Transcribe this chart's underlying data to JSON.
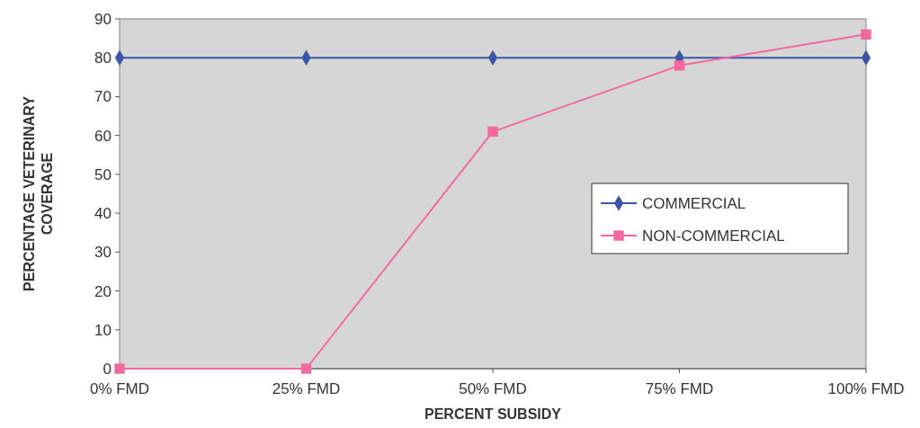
{
  "chart_data": {
    "type": "line",
    "xlabel": "PERCENT SUBSIDY",
    "ylabel": "PERCENTAGE VETERINARY COVERAGE",
    "categories": [
      "0% FMD",
      "25% FMD",
      "50% FMD",
      "75% FMD",
      "100% FMD"
    ],
    "series": [
      {
        "name": "COMMERCIAL",
        "color": "#3b56a6",
        "values": [
          80,
          80,
          80,
          80,
          80
        ],
        "marker": "diamond"
      },
      {
        "name": "NON-COMMERCIAL",
        "color": "#f2689f",
        "values": [
          0,
          0,
          61,
          78,
          86
        ],
        "marker": "square"
      }
    ],
    "ylim": [
      0,
      90
    ],
    "yticks": [
      0,
      10,
      20,
      30,
      40,
      50,
      60,
      70,
      80,
      90
    ],
    "grid": false,
    "legend": "right",
    "line_style": "solid"
  }
}
